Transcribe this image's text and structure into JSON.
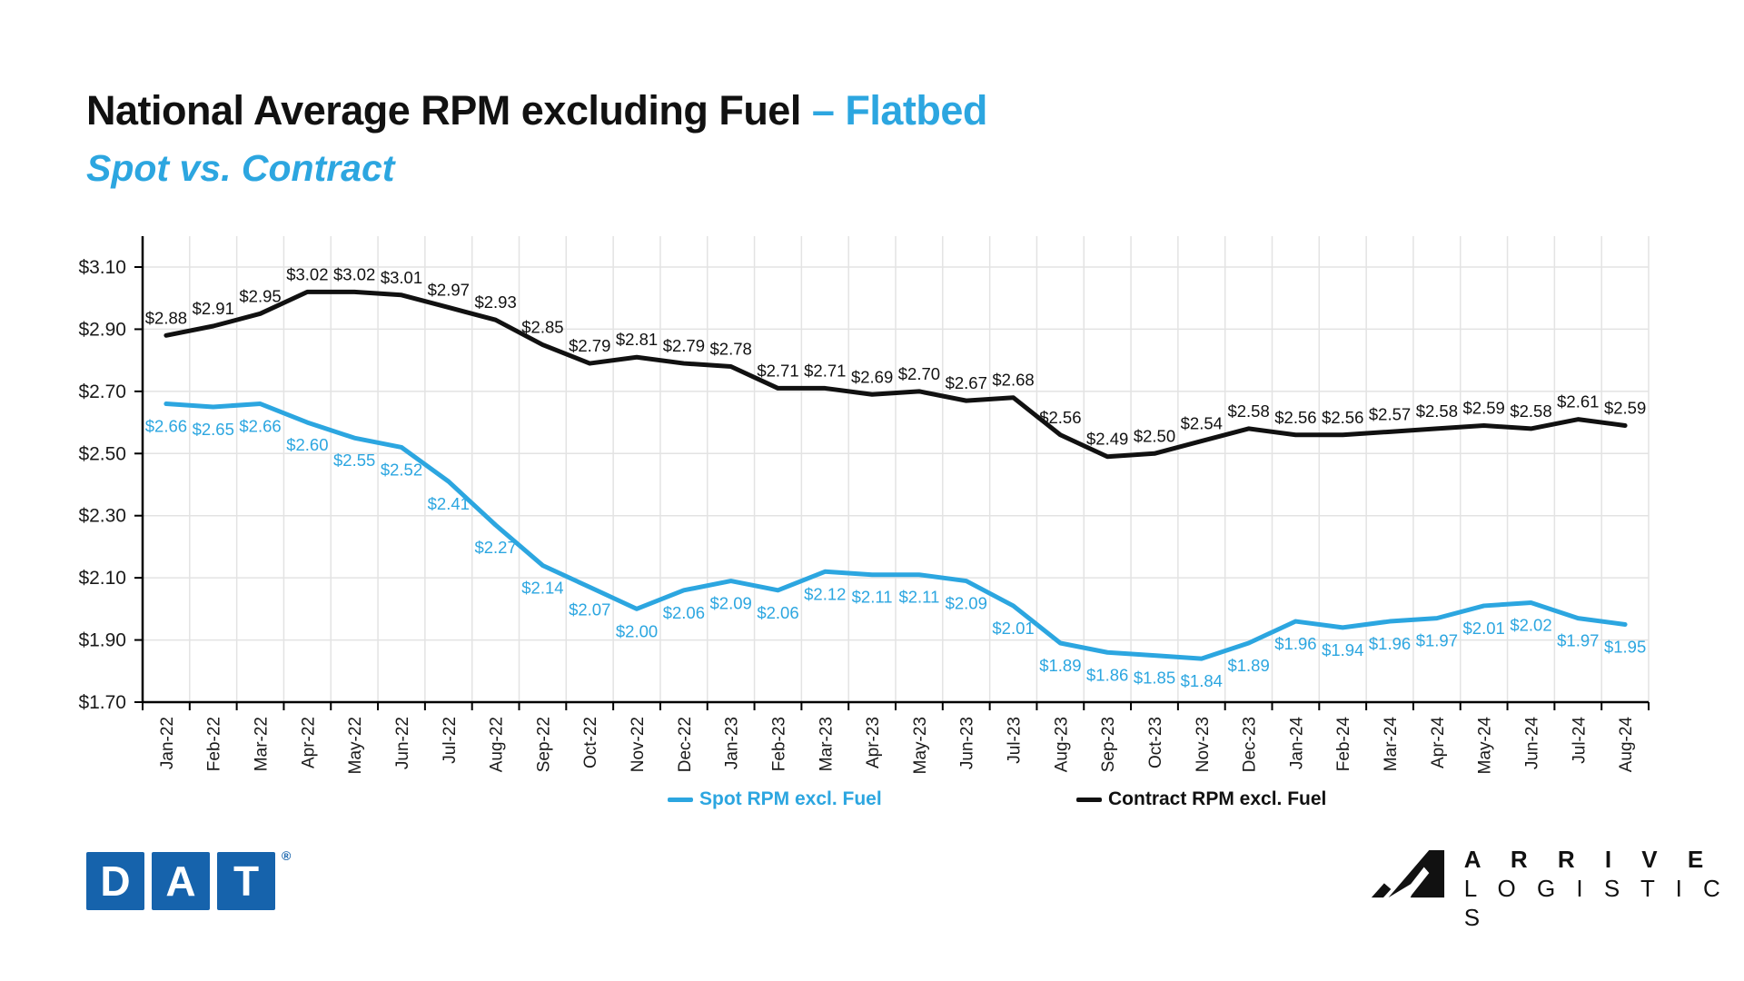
{
  "header": {
    "title_main": "National Average RPM excluding Fuel",
    "title_accent": "– Flatbed",
    "subtitle": "Spot vs. Contract"
  },
  "colors": {
    "accent_blue": "#2CA6E0",
    "contract_black": "#111111",
    "dat_blue": "#1663AC",
    "grid": "#E3E3E3",
    "axis": "#000000"
  },
  "chart_data": {
    "type": "line",
    "title": "National Average RPM excluding Fuel – Flatbed (Spot vs. Contract)",
    "xlabel": "",
    "ylabel": "",
    "grid": true,
    "legend_position": "bottom",
    "y_axis": {
      "min": 1.7,
      "max": 3.1,
      "step": 0.2,
      "tick_prefix": "$"
    },
    "categories": [
      "Jan-22",
      "Feb-22",
      "Mar-22",
      "Apr-22",
      "May-22",
      "Jun-22",
      "Jul-22",
      "Aug-22",
      "Sep-22",
      "Oct-22",
      "Nov-22",
      "Dec-22",
      "Jan-23",
      "Feb-23",
      "Mar-23",
      "Apr-23",
      "May-23",
      "Jun-23",
      "Jul-23",
      "Aug-23",
      "Sep-23",
      "Oct-23",
      "Nov-23",
      "Dec-23",
      "Jan-24",
      "Feb-24",
      "Mar-24",
      "Apr-24",
      "May-24",
      "Jun-24",
      "Jul-24",
      "Aug-24"
    ],
    "series": [
      {
        "name": "Spot RPM excl. Fuel",
        "color": "#2CA6E0",
        "label_side": "below",
        "values": [
          2.66,
          2.65,
          2.66,
          2.6,
          2.55,
          2.52,
          2.41,
          2.27,
          2.14,
          2.07,
          2.0,
          2.06,
          2.09,
          2.06,
          2.12,
          2.11,
          2.11,
          2.09,
          2.01,
          1.89,
          1.86,
          1.85,
          1.84,
          1.89,
          1.96,
          1.94,
          1.96,
          1.97,
          2.01,
          2.02,
          1.97,
          1.95
        ]
      },
      {
        "name": "Contract RPM excl. Fuel",
        "color": "#111111",
        "label_side": "above",
        "values": [
          2.88,
          2.91,
          2.95,
          3.02,
          3.02,
          3.01,
          2.97,
          2.93,
          2.85,
          2.79,
          2.81,
          2.79,
          2.78,
          2.71,
          2.71,
          2.69,
          2.7,
          2.67,
          2.68,
          2.56,
          2.49,
          2.5,
          2.54,
          2.58,
          2.56,
          2.56,
          2.57,
          2.58,
          2.59,
          2.58,
          2.61,
          2.59
        ]
      }
    ]
  },
  "legend": {
    "spot_label": "Spot RPM excl. Fuel",
    "contract_label": "Contract RPM excl. Fuel"
  },
  "footer": {
    "dat_letters": [
      "D",
      "A",
      "T"
    ],
    "dat_registered": "®",
    "arrive_line1": "A R R I V E",
    "arrive_line2": "L O G I S T I C S"
  }
}
